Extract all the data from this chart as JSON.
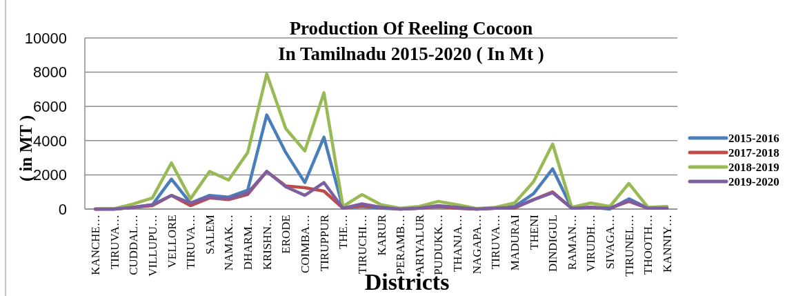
{
  "chart_data": {
    "type": "line",
    "title": "Production Of Reeling Cocoon\nIn Tamilnadu 2015-2020 ( In Mt )",
    "xlabel": "Districts",
    "ylabel": "( in MT )",
    "categories": [
      "KANCHE…",
      "TIRUVA…",
      "CUDDAL…",
      "VILLUPU…",
      "VELLORE",
      "TIRUVA…",
      "SALEM",
      "NAMAK…",
      "DHARM…",
      "KRISHN…",
      "ERODE",
      "COIMBA…",
      "TIRUPPUR",
      "THE…",
      "TIRUCHI…",
      "KARUR",
      "PERAMB…",
      "ARIYALUR",
      "PUDUKK…",
      "THANJA…",
      "NAGAPA…",
      "TIRUVA…",
      "MADURAI",
      "THENI",
      "DINDIGUL",
      "RAMAN…",
      "VIRUDH…",
      "SIVAGA…",
      "TIRUNEL…",
      "THOOTH…",
      "KANNIY…"
    ],
    "series": [
      {
        "name": "2015-2016",
        "color": "#4a7ebb",
        "values": [
          0,
          0,
          100,
          250,
          1750,
          350,
          800,
          700,
          1100,
          5500,
          3300,
          1550,
          4200,
          50,
          150,
          50,
          0,
          50,
          150,
          50,
          0,
          50,
          150,
          900,
          2350,
          50,
          100,
          0,
          600,
          50,
          50
        ]
      },
      {
        "name": "2017-2018",
        "color": "#be4b48",
        "values": [
          0,
          0,
          100,
          200,
          800,
          200,
          650,
          550,
          850,
          2200,
          1350,
          1250,
          1050,
          50,
          200,
          100,
          0,
          50,
          150,
          50,
          0,
          50,
          50,
          550,
          1000,
          50,
          100,
          50,
          450,
          50,
          50
        ]
      },
      {
        "name": "2018-2019",
        "color": "#98b954",
        "values": [
          0,
          20,
          300,
          650,
          2700,
          600,
          2200,
          1700,
          3300,
          7900,
          4700,
          3400,
          6800,
          150,
          850,
          250,
          50,
          150,
          450,
          250,
          30,
          100,
          350,
          1600,
          3800,
          100,
          350,
          150,
          1500,
          100,
          150
        ]
      },
      {
        "name": "2019-2020",
        "color": "#7d5fa0",
        "values": [
          0,
          0,
          100,
          250,
          800,
          350,
          700,
          600,
          950,
          2200,
          1300,
          800,
          1550,
          50,
          300,
          100,
          0,
          50,
          200,
          100,
          0,
          50,
          100,
          550,
          950,
          50,
          100,
          50,
          500,
          50,
          50
        ]
      }
    ],
    "ylim": [
      0,
      10000
    ],
    "yticks": [
      0,
      2000,
      4000,
      6000,
      8000,
      10000
    ],
    "grid": "y",
    "legend": "right",
    "marker": "none",
    "line_style": "solid"
  }
}
